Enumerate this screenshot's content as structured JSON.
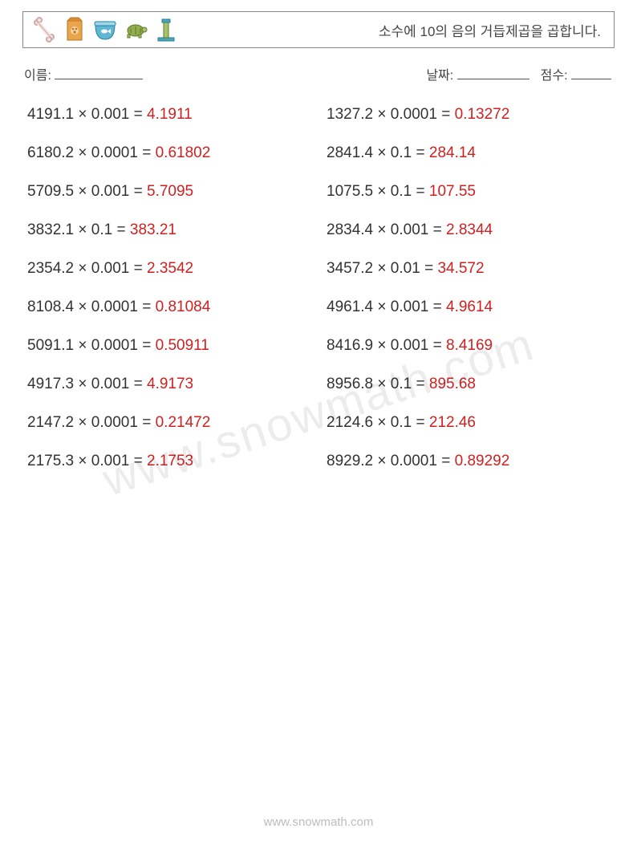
{
  "header": {
    "title": "소수에 10의 음의 거듭제곱을 곱합니다."
  },
  "meta": {
    "name_label": "이름:",
    "date_label": "날짜:",
    "score_label": "점수:"
  },
  "columns": {
    "left": [
      {
        "a": "4191.1",
        "b": "0.001",
        "ans": "4.1911"
      },
      {
        "a": "6180.2",
        "b": "0.0001",
        "ans": "0.61802"
      },
      {
        "a": "5709.5",
        "b": "0.001",
        "ans": "5.7095"
      },
      {
        "a": "3832.1",
        "b": "0.1",
        "ans": "383.21"
      },
      {
        "a": "2354.2",
        "b": "0.001",
        "ans": "2.3542"
      },
      {
        "a": "8108.4",
        "b": "0.0001",
        "ans": "0.81084"
      },
      {
        "a": "5091.1",
        "b": "0.0001",
        "ans": "0.50911"
      },
      {
        "a": "4917.3",
        "b": "0.001",
        "ans": "4.9173"
      },
      {
        "a": "2147.2",
        "b": "0.0001",
        "ans": "0.21472"
      },
      {
        "a": "2175.3",
        "b": "0.001",
        "ans": "2.1753"
      }
    ],
    "right": [
      {
        "a": "1327.2",
        "b": "0.0001",
        "ans": "0.13272"
      },
      {
        "a": "2841.4",
        "b": "0.1",
        "ans": "284.14"
      },
      {
        "a": "1075.5",
        "b": "0.1",
        "ans": "107.55"
      },
      {
        "a": "2834.4",
        "b": "0.001",
        "ans": "2.8344"
      },
      {
        "a": "3457.2",
        "b": "0.01",
        "ans": "34.572"
      },
      {
        "a": "4961.4",
        "b": "0.001",
        "ans": "4.9614"
      },
      {
        "a": "8416.9",
        "b": "0.001",
        "ans": "8.4169"
      },
      {
        "a": "8956.8",
        "b": "0.1",
        "ans": "895.68"
      },
      {
        "a": "2124.6",
        "b": "0.1",
        "ans": "212.46"
      },
      {
        "a": "8929.2",
        "b": "0.0001",
        "ans": "0.89292"
      }
    ]
  },
  "watermark": "www.snowmath.com",
  "footer": "www.snowmath.com",
  "style": {
    "answer_color": "#d02020",
    "text_color": "#333333",
    "op_symbol": "×",
    "eq_symbol": "="
  }
}
